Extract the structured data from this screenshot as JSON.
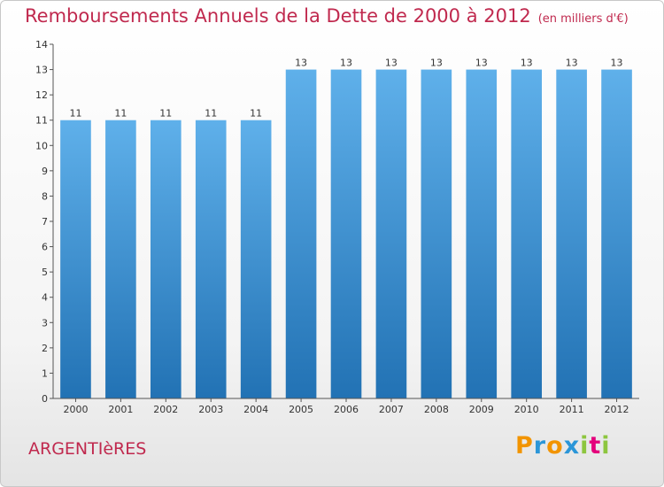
{
  "header": {
    "title": "Remboursements Annuels de la Dette de 2000 à 2012",
    "subtitle": "(en milliers d'€)"
  },
  "footer": {
    "town": "ARGENTIèRES",
    "logo": {
      "p": "P",
      "r": "r",
      "o": "o",
      "x": "x",
      "i1": "i",
      "t": "t",
      "i2": "i"
    }
  },
  "colors": {
    "title": "#c0294e",
    "bar_top": "#5fb0ea",
    "bar_bottom": "#2272b4",
    "logo": [
      "#f29400",
      "#2b96d8",
      "#f29400",
      "#2b96d8",
      "#8dc63f",
      "#e4007c",
      "#8dc63f"
    ]
  },
  "chart_data": {
    "type": "bar",
    "categories": [
      "2000",
      "2001",
      "2002",
      "2003",
      "2004",
      "2005",
      "2006",
      "2007",
      "2008",
      "2009",
      "2010",
      "2011",
      "2012"
    ],
    "values": [
      11,
      11,
      11,
      11,
      11,
      13,
      13,
      13,
      13,
      13,
      13,
      13,
      13
    ],
    "data_labels": [
      "11",
      "11",
      "11",
      "11",
      "11",
      "13",
      "13",
      "13",
      "13",
      "13",
      "13",
      "13",
      "13"
    ],
    "y_ticks": [
      0,
      1,
      2,
      3,
      4,
      5,
      6,
      7,
      8,
      9,
      10,
      11,
      12,
      13,
      14
    ],
    "y_tick_labels": [
      "0",
      "1",
      "2",
      "3",
      "4",
      "5",
      "6",
      "7",
      "8",
      "9",
      "10",
      "11",
      "12",
      "13",
      "14"
    ],
    "ylim": [
      0,
      14
    ],
    "grid": false,
    "legend": "none"
  }
}
